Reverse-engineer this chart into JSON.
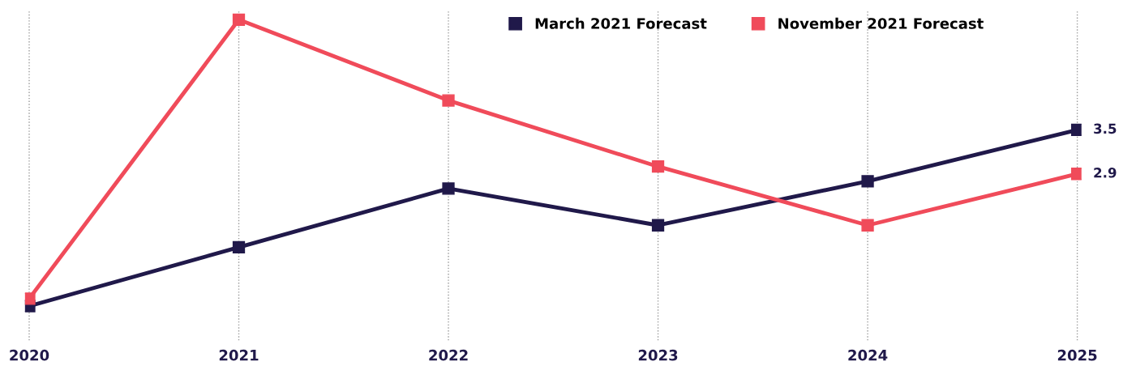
{
  "chart_data": {
    "type": "line",
    "categories": [
      "2020",
      "2021",
      "2022",
      "2023",
      "2024",
      "2025"
    ],
    "series": [
      {
        "name": "March 2021 Forecast",
        "color": "#20194a",
        "values": [
          1.1,
          1.9,
          2.7,
          2.2,
          2.8,
          3.5
        ],
        "value_labels": [
          null,
          null,
          null,
          null,
          null,
          "3.5"
        ]
      },
      {
        "name": "November 2021 Forecast",
        "color": "#f04b5a",
        "values": [
          1.2,
          5.0,
          3.9,
          3.0,
          2.2,
          2.9
        ],
        "value_labels": [
          null,
          null,
          null,
          null,
          null,
          "2.9"
        ]
      }
    ],
    "marker": "square",
    "line_style": "solid",
    "grid": "x",
    "legend": "top right"
  }
}
